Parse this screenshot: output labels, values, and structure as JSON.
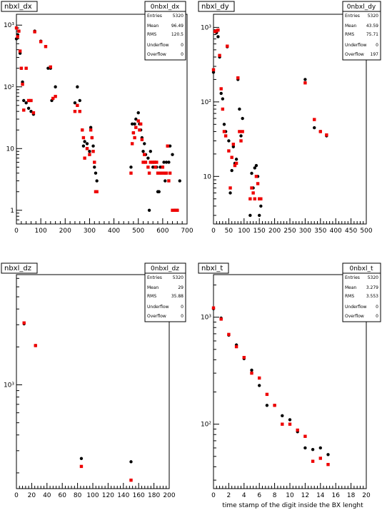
{
  "chart_data": [
    {
      "type": "scatter",
      "title": "nbxl_dx",
      "stats": {
        "title": "0nbxl_dx",
        "rows": [
          [
            "Entries",
            "5320"
          ],
          [
            "Mean",
            "96.49"
          ],
          [
            "RMS",
            "120.5"
          ],
          [
            "Underflow",
            "0"
          ],
          [
            "Overflow",
            "0"
          ]
        ]
      },
      "xlabel": "",
      "xlim": [
        0,
        700
      ],
      "ylim": [
        0.6,
        1500
      ],
      "yscale": "log",
      "xticks": [
        0,
        100,
        200,
        300,
        400,
        500,
        600,
        700
      ],
      "yticks": [
        {
          "v": 1,
          "t": "1"
        },
        {
          "v": 10,
          "t": "10"
        },
        {
          "v": 100,
          "t": "10²"
        },
        {
          "v": 1000,
          "t": "10³"
        }
      ],
      "series": [
        {
          "color": "#000000",
          "points": [
            [
              0,
              600
            ],
            [
              5,
              700
            ],
            [
              10,
              800
            ],
            [
              15,
              350
            ],
            [
              20,
              200
            ],
            [
              25,
              120
            ],
            [
              30,
              60
            ],
            [
              40,
              55
            ],
            [
              50,
              45
            ],
            [
              60,
              40
            ],
            [
              70,
              36
            ],
            [
              75,
              800
            ],
            [
              100,
              550
            ],
            [
              130,
              200
            ],
            [
              140,
              200
            ],
            [
              145,
              60
            ],
            [
              160,
              100
            ],
            [
              240,
              55
            ],
            [
              250,
              100
            ],
            [
              260,
              60
            ],
            [
              270,
              20
            ],
            [
              275,
              11
            ],
            [
              280,
              13
            ],
            [
              290,
              12
            ],
            [
              300,
              9
            ],
            [
              305,
              22
            ],
            [
              310,
              15
            ],
            [
              315,
              11
            ],
            [
              320,
              5
            ],
            [
              325,
              4
            ],
            [
              330,
              3
            ],
            [
              470,
              5
            ],
            [
              475,
              25
            ],
            [
              480,
              18
            ],
            [
              485,
              25
            ],
            [
              490,
              30
            ],
            [
              500,
              38
            ],
            [
              505,
              25
            ],
            [
              510,
              20
            ],
            [
              515,
              15
            ],
            [
              520,
              9
            ],
            [
              525,
              12
            ],
            [
              530,
              8
            ],
            [
              540,
              7
            ],
            [
              545,
              1
            ],
            [
              550,
              9
            ],
            [
              560,
              5
            ],
            [
              570,
              6
            ],
            [
              575,
              5
            ],
            [
              580,
              2
            ],
            [
              585,
              2
            ],
            [
              590,
              5
            ],
            [
              600,
              5
            ],
            [
              605,
              6
            ],
            [
              610,
              3
            ],
            [
              615,
              6
            ],
            [
              620,
              11
            ],
            [
              625,
              6
            ],
            [
              630,
              11
            ],
            [
              640,
              8
            ],
            [
              650,
              1
            ],
            [
              660,
              1
            ],
            [
              670,
              3
            ]
          ]
        },
        {
          "color": "#ee0000",
          "points": [
            [
              0,
              900
            ],
            [
              5,
              650
            ],
            [
              10,
              800
            ],
            [
              15,
              380
            ],
            [
              20,
              200
            ],
            [
              25,
              110
            ],
            [
              30,
              42
            ],
            [
              40,
              200
            ],
            [
              50,
              60
            ],
            [
              60,
              60
            ],
            [
              70,
              38
            ],
            [
              75,
              780
            ],
            [
              100,
              540
            ],
            [
              120,
              450
            ],
            [
              140,
              210
            ],
            [
              150,
              65
            ],
            [
              160,
              70
            ],
            [
              240,
              40
            ],
            [
              250,
              50
            ],
            [
              260,
              40
            ],
            [
              270,
              20
            ],
            [
              275,
              15
            ],
            [
              280,
              7
            ],
            [
              290,
              10
            ],
            [
              300,
              8
            ],
            [
              305,
              20
            ],
            [
              310,
              15
            ],
            [
              315,
              9
            ],
            [
              320,
              6
            ],
            [
              325,
              2
            ],
            [
              330,
              2
            ],
            [
              470,
              4
            ],
            [
              475,
              12
            ],
            [
              480,
              18
            ],
            [
              485,
              15
            ],
            [
              490,
              22
            ],
            [
              500,
              28
            ],
            [
              505,
              20
            ],
            [
              510,
              25
            ],
            [
              515,
              14
            ],
            [
              520,
              6
            ],
            [
              525,
              8
            ],
            [
              530,
              6
            ],
            [
              540,
              5
            ],
            [
              545,
              4
            ],
            [
              550,
              6
            ],
            [
              560,
              6
            ],
            [
              565,
              6
            ],
            [
              570,
              5
            ],
            [
              575,
              6
            ],
            [
              580,
              4
            ],
            [
              590,
              4
            ],
            [
              595,
              4
            ],
            [
              600,
              5
            ],
            [
              605,
              4
            ],
            [
              610,
              4
            ],
            [
              615,
              4
            ],
            [
              620,
              11
            ],
            [
              625,
              3
            ],
            [
              630,
              4
            ],
            [
              640,
              1
            ],
            [
              650,
              1
            ],
            [
              660,
              1
            ]
          ]
        }
      ]
    },
    {
      "type": "scatter",
      "title": "nbxl_dy",
      "stats": {
        "title": "0nbxl_dy",
        "rows": [
          [
            "Entries",
            "5320"
          ],
          [
            "Mean",
            "43.59"
          ],
          [
            "RMS",
            "75.71"
          ],
          [
            "Underflow",
            "0"
          ],
          [
            "Overflow",
            "197"
          ]
        ]
      },
      "xlabel": "",
      "xlim": [
        0,
        500
      ],
      "ylim": [
        2.3,
        1500
      ],
      "yscale": "log",
      "xticks": [
        0,
        50,
        100,
        150,
        200,
        250,
        300,
        350,
        400,
        450,
        500
      ],
      "yticks": [
        {
          "v": 10,
          "t": "10"
        },
        {
          "v": 100,
          "t": "10²"
        },
        {
          "v": 1000,
          "t": "10³"
        }
      ],
      "series": [
        {
          "color": "#000000",
          "points": [
            [
              0,
              250
            ],
            [
              5,
              900
            ],
            [
              10,
              850
            ],
            [
              15,
              750
            ],
            [
              20,
              400
            ],
            [
              25,
              130
            ],
            [
              30,
              110
            ],
            [
              35,
              50
            ],
            [
              40,
              40
            ],
            [
              45,
              550
            ],
            [
              50,
              30
            ],
            [
              55,
              6
            ],
            [
              60,
              12
            ],
            [
              65,
              25
            ],
            [
              70,
              15
            ],
            [
              75,
              17
            ],
            [
              80,
              200
            ],
            [
              85,
              80
            ],
            [
              90,
              35
            ],
            [
              95,
              60
            ],
            [
              120,
              3
            ],
            [
              125,
              11
            ],
            [
              130,
              7
            ],
            [
              135,
              13
            ],
            [
              140,
              14
            ],
            [
              145,
              10
            ],
            [
              150,
              3
            ],
            [
              155,
              4
            ],
            [
              300,
              200
            ],
            [
              330,
              45
            ],
            [
              350,
              40
            ],
            [
              370,
              35
            ]
          ]
        },
        {
          "color": "#ee0000",
          "points": [
            [
              0,
              270
            ],
            [
              5,
              880
            ],
            [
              10,
              900
            ],
            [
              15,
              920
            ],
            [
              20,
              420
            ],
            [
              25,
              150
            ],
            [
              30,
              80
            ],
            [
              35,
              40
            ],
            [
              40,
              35
            ],
            [
              45,
              560
            ],
            [
              50,
              22
            ],
            [
              55,
              7
            ],
            [
              60,
              18
            ],
            [
              65,
              27
            ],
            [
              70,
              14
            ],
            [
              75,
              15
            ],
            [
              80,
              210
            ],
            [
              85,
              40
            ],
            [
              90,
              30
            ],
            [
              95,
              40
            ],
            [
              120,
              5
            ],
            [
              125,
              7
            ],
            [
              130,
              6
            ],
            [
              135,
              5
            ],
            [
              140,
              10
            ],
            [
              145,
              8
            ],
            [
              150,
              5
            ],
            [
              155,
              5
            ],
            [
              300,
              180
            ],
            [
              330,
              58
            ],
            [
              350,
              40
            ],
            [
              370,
              36
            ]
          ]
        }
      ]
    },
    {
      "type": "scatter",
      "title": "nbxl_dz",
      "stats": {
        "title": "0nbxl_dz",
        "rows": [
          [
            "Entries",
            "5320"
          ],
          [
            "Mean",
            "29"
          ],
          [
            "RMS",
            "35.88"
          ],
          [
            "Underflow",
            "0"
          ],
          [
            "Overflow",
            "0"
          ]
        ]
      },
      "xlabel": "",
      "xlim": [
        0,
        200
      ],
      "ylim": [
        150,
        7500
      ],
      "yscale": "log",
      "xticks": [
        0,
        20,
        40,
        60,
        80,
        100,
        120,
        140,
        160,
        180,
        200
      ],
      "yticks": [
        {
          "v": 1000,
          "t": "10³"
        }
      ],
      "series": [
        {
          "color": "#000000",
          "points": [
            [
              10,
              3050
            ],
            [
              25,
              2050
            ],
            [
              85,
              260
            ],
            [
              150,
              245
            ]
          ]
        },
        {
          "color": "#ee0000",
          "points": [
            [
              10,
              3100
            ],
            [
              25,
              2050
            ],
            [
              85,
              225
            ],
            [
              150,
              175
            ]
          ]
        }
      ]
    },
    {
      "type": "scatter",
      "title": "nbxl_t",
      "stats": {
        "title": "0nbxl_t",
        "rows": [
          [
            "Entries",
            "5320"
          ],
          [
            "Mean",
            "3.279"
          ],
          [
            "RMS",
            "3.553"
          ],
          [
            "Underflow",
            "0"
          ],
          [
            "Overflow",
            "0"
          ]
        ]
      },
      "xlabel": "time stamp of the digit inside the BX lenght",
      "xlim": [
        0,
        20
      ],
      "ylim": [
        25,
        2500
      ],
      "yscale": "log",
      "xticks": [
        0,
        2,
        4,
        6,
        8,
        10,
        12,
        14,
        16,
        18,
        20
      ],
      "yticks": [
        {
          "v": 100,
          "t": "10²"
        },
        {
          "v": 1000,
          "t": "10³"
        }
      ],
      "series": [
        {
          "color": "#000000",
          "points": [
            [
              0,
              1200
            ],
            [
              1,
              980
            ],
            [
              2,
              680
            ],
            [
              3,
              550
            ],
            [
              4,
              410
            ],
            [
              5,
              320
            ],
            [
              6,
              230
            ],
            [
              7,
              150
            ],
            [
              8,
              150
            ],
            [
              9,
              120
            ],
            [
              10,
              110
            ],
            [
              11,
              85
            ],
            [
              12,
              60
            ],
            [
              13,
              58
            ],
            [
              14,
              60
            ],
            [
              15,
              52
            ]
          ]
        },
        {
          "color": "#ee0000",
          "points": [
            [
              0,
              1220
            ],
            [
              1,
              960
            ],
            [
              2,
              690
            ],
            [
              3,
              530
            ],
            [
              4,
              420
            ],
            [
              5,
              300
            ],
            [
              6,
              270
            ],
            [
              7,
              190
            ],
            [
              8,
              150
            ],
            [
              9,
              100
            ],
            [
              10,
              100
            ],
            [
              11,
              88
            ],
            [
              12,
              77
            ],
            [
              13,
              45
            ],
            [
              14,
              48
            ],
            [
              15,
              42
            ]
          ]
        }
      ]
    }
  ]
}
